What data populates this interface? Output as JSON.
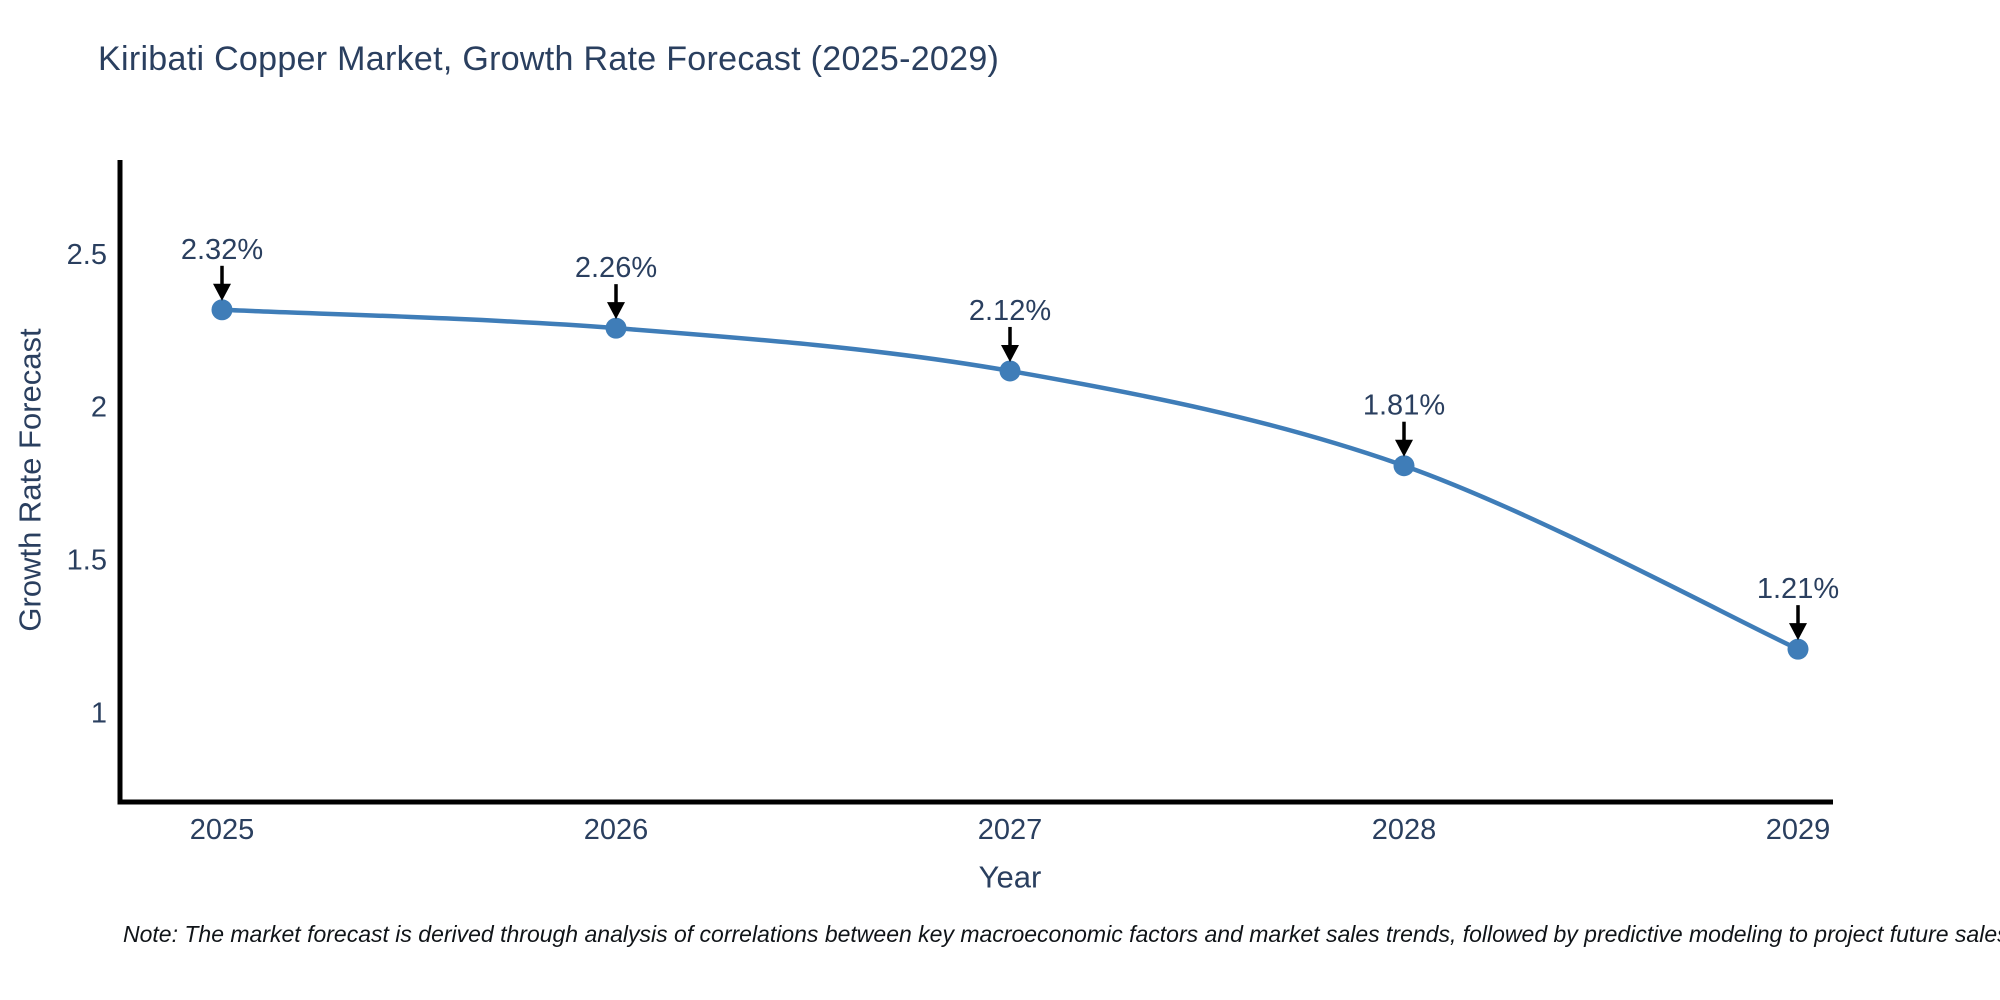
{
  "title": "Kiribati Copper Market, Growth Rate Forecast (2025-2029)",
  "note": "Note: The market forecast is derived through analysis of correlations between key macroeconomic factors and market sales trends, followed by predictive modeling to project future sales",
  "chart_data": {
    "type": "line",
    "title": "Kiribati Copper Market, Growth Rate Forecast (2025-2029)",
    "xlabel": "Year",
    "ylabel": "Growth Rate Forecast",
    "categories": [
      "2025",
      "2026",
      "2027",
      "2028",
      "2029"
    ],
    "values": [
      2.32,
      2.26,
      2.12,
      1.81,
      1.21
    ],
    "point_labels": [
      "2.32%",
      "2.26%",
      "2.12%",
      "1.81%",
      "1.21%"
    ],
    "yticks": [
      1,
      1.5,
      2,
      2.5
    ],
    "ylim": [
      0.71,
      2.81
    ],
    "grid": false,
    "legend": false,
    "line_smoothing": "spline",
    "colors": {
      "line": "#3f7db8",
      "marker": "#3f7db8",
      "text": "#2a3f5f",
      "axis": "#000000",
      "annotation_arrow": "#000000"
    }
  }
}
